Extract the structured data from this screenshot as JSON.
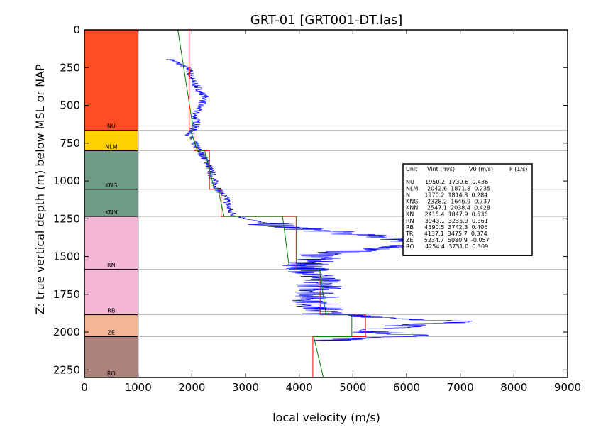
{
  "chart_data": {
    "type": "line",
    "title": "GRT-01 [GRT001-DT.las]",
    "xlabel": "local velocity (m/s)",
    "ylabel": "Z: true vertical depth (m) below MSL or NAP",
    "xlim": [
      0,
      9000
    ],
    "ylim": [
      2300,
      0
    ],
    "xticks": [
      "0",
      "1000",
      "2000",
      "3000",
      "4000",
      "5000",
      "6000",
      "7000",
      "8000",
      "9000"
    ],
    "yticks": [
      "0",
      "250",
      "500",
      "750",
      "1000",
      "1250",
      "1500",
      "1750",
      "2000",
      "2250"
    ],
    "colors": {
      "measured": "#0000ff",
      "interval": "#ff0000",
      "gradient": "#008000",
      "boundary": "#bbbbbb"
    },
    "units": [
      {
        "name": "NU",
        "top": 0,
        "base": 665,
        "color": "#ff4d26"
      },
      {
        "name": "NLM",
        "top": 665,
        "base": 800,
        "color": "#ffd000"
      },
      {
        "name": "KNG",
        "top": 800,
        "base": 1055,
        "color": "#6f9a86"
      },
      {
        "name": "KNN",
        "top": 1055,
        "base": 1235,
        "color": "#6f9a86"
      },
      {
        "name": "RN",
        "top": 1235,
        "base": 1585,
        "color": "#f4b6d6"
      },
      {
        "name": "RB",
        "top": 1585,
        "base": 1885,
        "color": "#f4b6d6"
      },
      {
        "name": "ZE",
        "top": 1885,
        "base": 2030,
        "color": "#f3b597"
      },
      {
        "name": "RO",
        "top": 2030,
        "base": 2300,
        "color": "#ad827c"
      }
    ],
    "column_x_range": [
      0,
      1000
    ],
    "boundaries": [
      665,
      800,
      1055,
      1235,
      1585,
      1885,
      2030,
      2300
    ],
    "measured_velocity": [
      [
        1600,
        195
      ],
      [
        1950,
        260
      ],
      [
        2000,
        330
      ],
      [
        2250,
        450
      ],
      [
        2050,
        560
      ],
      [
        2100,
        620
      ],
      [
        1950,
        700
      ],
      [
        2100,
        780
      ],
      [
        2300,
        880
      ],
      [
        2400,
        990
      ],
      [
        2500,
        1060
      ],
      [
        2650,
        1120
      ],
      [
        2700,
        1190
      ],
      [
        2800,
        1230
      ],
      [
        3600,
        1300
      ],
      [
        5800,
        1380
      ],
      [
        6400,
        1420
      ],
      [
        4500,
        1480
      ],
      [
        4100,
        1550
      ],
      [
        4300,
        1620
      ],
      [
        4400,
        1700
      ],
      [
        4300,
        1800
      ],
      [
        4500,
        1880
      ],
      [
        7000,
        1930
      ],
      [
        5000,
        1990
      ],
      [
        6300,
        2020
      ],
      [
        4300,
        2060
      ]
    ],
    "interval_velocity": [
      {
        "unit": "NU",
        "vint": 1950.2,
        "top": 0,
        "base": 665
      },
      {
        "unit": "NLM",
        "vint": 2042.6,
        "top": 665,
        "base": 800
      },
      {
        "unit": "KNG",
        "vint": 2328.2,
        "top": 800,
        "base": 1055
      },
      {
        "unit": "KNN",
        "vint": 2547.1,
        "top": 1055,
        "base": 1235
      },
      {
        "unit": "RN",
        "vint": 3943.1,
        "top": 1235,
        "base": 1585
      },
      {
        "unit": "RB",
        "vint": 4390.5,
        "top": 1585,
        "base": 1885
      },
      {
        "unit": "ZE",
        "vint": 5234.7,
        "top": 1885,
        "base": 2030
      },
      {
        "unit": "RO",
        "vint": 4254.4,
        "top": 2030,
        "base": 2300
      }
    ],
    "gradient_velocity": [
      {
        "unit": "NU",
        "v_top": 1739.6,
        "v_base": 2030.0,
        "top": 0,
        "base": 665
      },
      {
        "unit": "NLM",
        "v_top": 1980.0,
        "v_base": 2100.0,
        "top": 665,
        "base": 800
      },
      {
        "unit": "KNG",
        "v_top": 2240.0,
        "v_base": 2420.0,
        "top": 800,
        "base": 1055
      },
      {
        "unit": "KNN",
        "v_top": 2490.0,
        "v_base": 2600.0,
        "top": 1055,
        "base": 1235
      },
      {
        "unit": "RN",
        "v_top": 3690.0,
        "v_base": 3820.0,
        "top": 1235,
        "base": 1585
      },
      {
        "unit": "RB",
        "v_top": 4380.0,
        "v_base": 4500.0,
        "top": 1585,
        "base": 1885
      },
      {
        "unit": "ZE",
        "v_top": 4980.0,
        "v_base": 4980.0,
        "top": 1885,
        "base": 2030
      },
      {
        "unit": "RO",
        "v_top": 4270.0,
        "v_base": 4450.0,
        "top": 2030,
        "base": 2300
      }
    ],
    "table": {
      "header": [
        "Unit",
        "Vint (m/s)",
        "V0 (m/s)",
        "k (1/s)"
      ],
      "rows": [
        "NU      1950.2  1739.6  0.436",
        "NLM     2042.6  1871.8  0.235",
        "N        1970.2  1814.8  0.284",
        "KNG     2328.2  1646.9  0.737",
        "KNN     2547.1  2038.4  0.428",
        "KN      2415.4  1847.9  0.536",
        "RN      3943.1  3235.9  0.361",
        "RB      4390.5  3742.3  0.406",
        "TR      4137.1  3475.7  0.374",
        "ZE      5234.7  5080.9  -0.057",
        "RO      4254.4  3731.0  0.309"
      ]
    }
  }
}
